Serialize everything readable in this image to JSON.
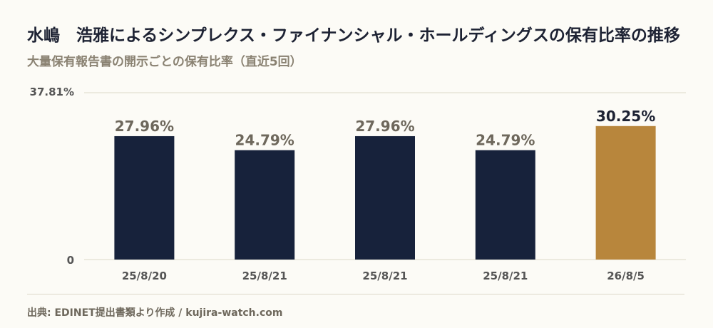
{
  "header": {
    "title": "水嶋　浩雅によるシンプレクス・ファイナンシャル・ホールディングスの保有比率の推移",
    "subtitle": "大量保有報告書の開示ごとの保有比率（直近5回）"
  },
  "footer": {
    "source": "出典: EDINET提出書類より作成 / kujira-watch.com"
  },
  "colors": {
    "bar": "#17223b",
    "highlight": "#b8863c",
    "label": "#6e685c",
    "highlight_label": "#1d2233",
    "grid": "#ddd8c8",
    "tick": "#555555"
  },
  "chart_data": {
    "type": "bar",
    "categories": [
      "25/8/20",
      "25/8/21",
      "25/8/21",
      "25/8/21",
      "26/8/5"
    ],
    "values": [
      27.96,
      24.79,
      27.96,
      24.79,
      30.25
    ],
    "data_labels": [
      "27.96%",
      "24.79%",
      "27.96%",
      "24.79%",
      "30.25%"
    ],
    "highlight_index": 4,
    "ylim": [
      0,
      37.81
    ],
    "yticks": [
      "0",
      "37.81%"
    ],
    "grid": true,
    "xlabel": "",
    "ylabel": ""
  }
}
